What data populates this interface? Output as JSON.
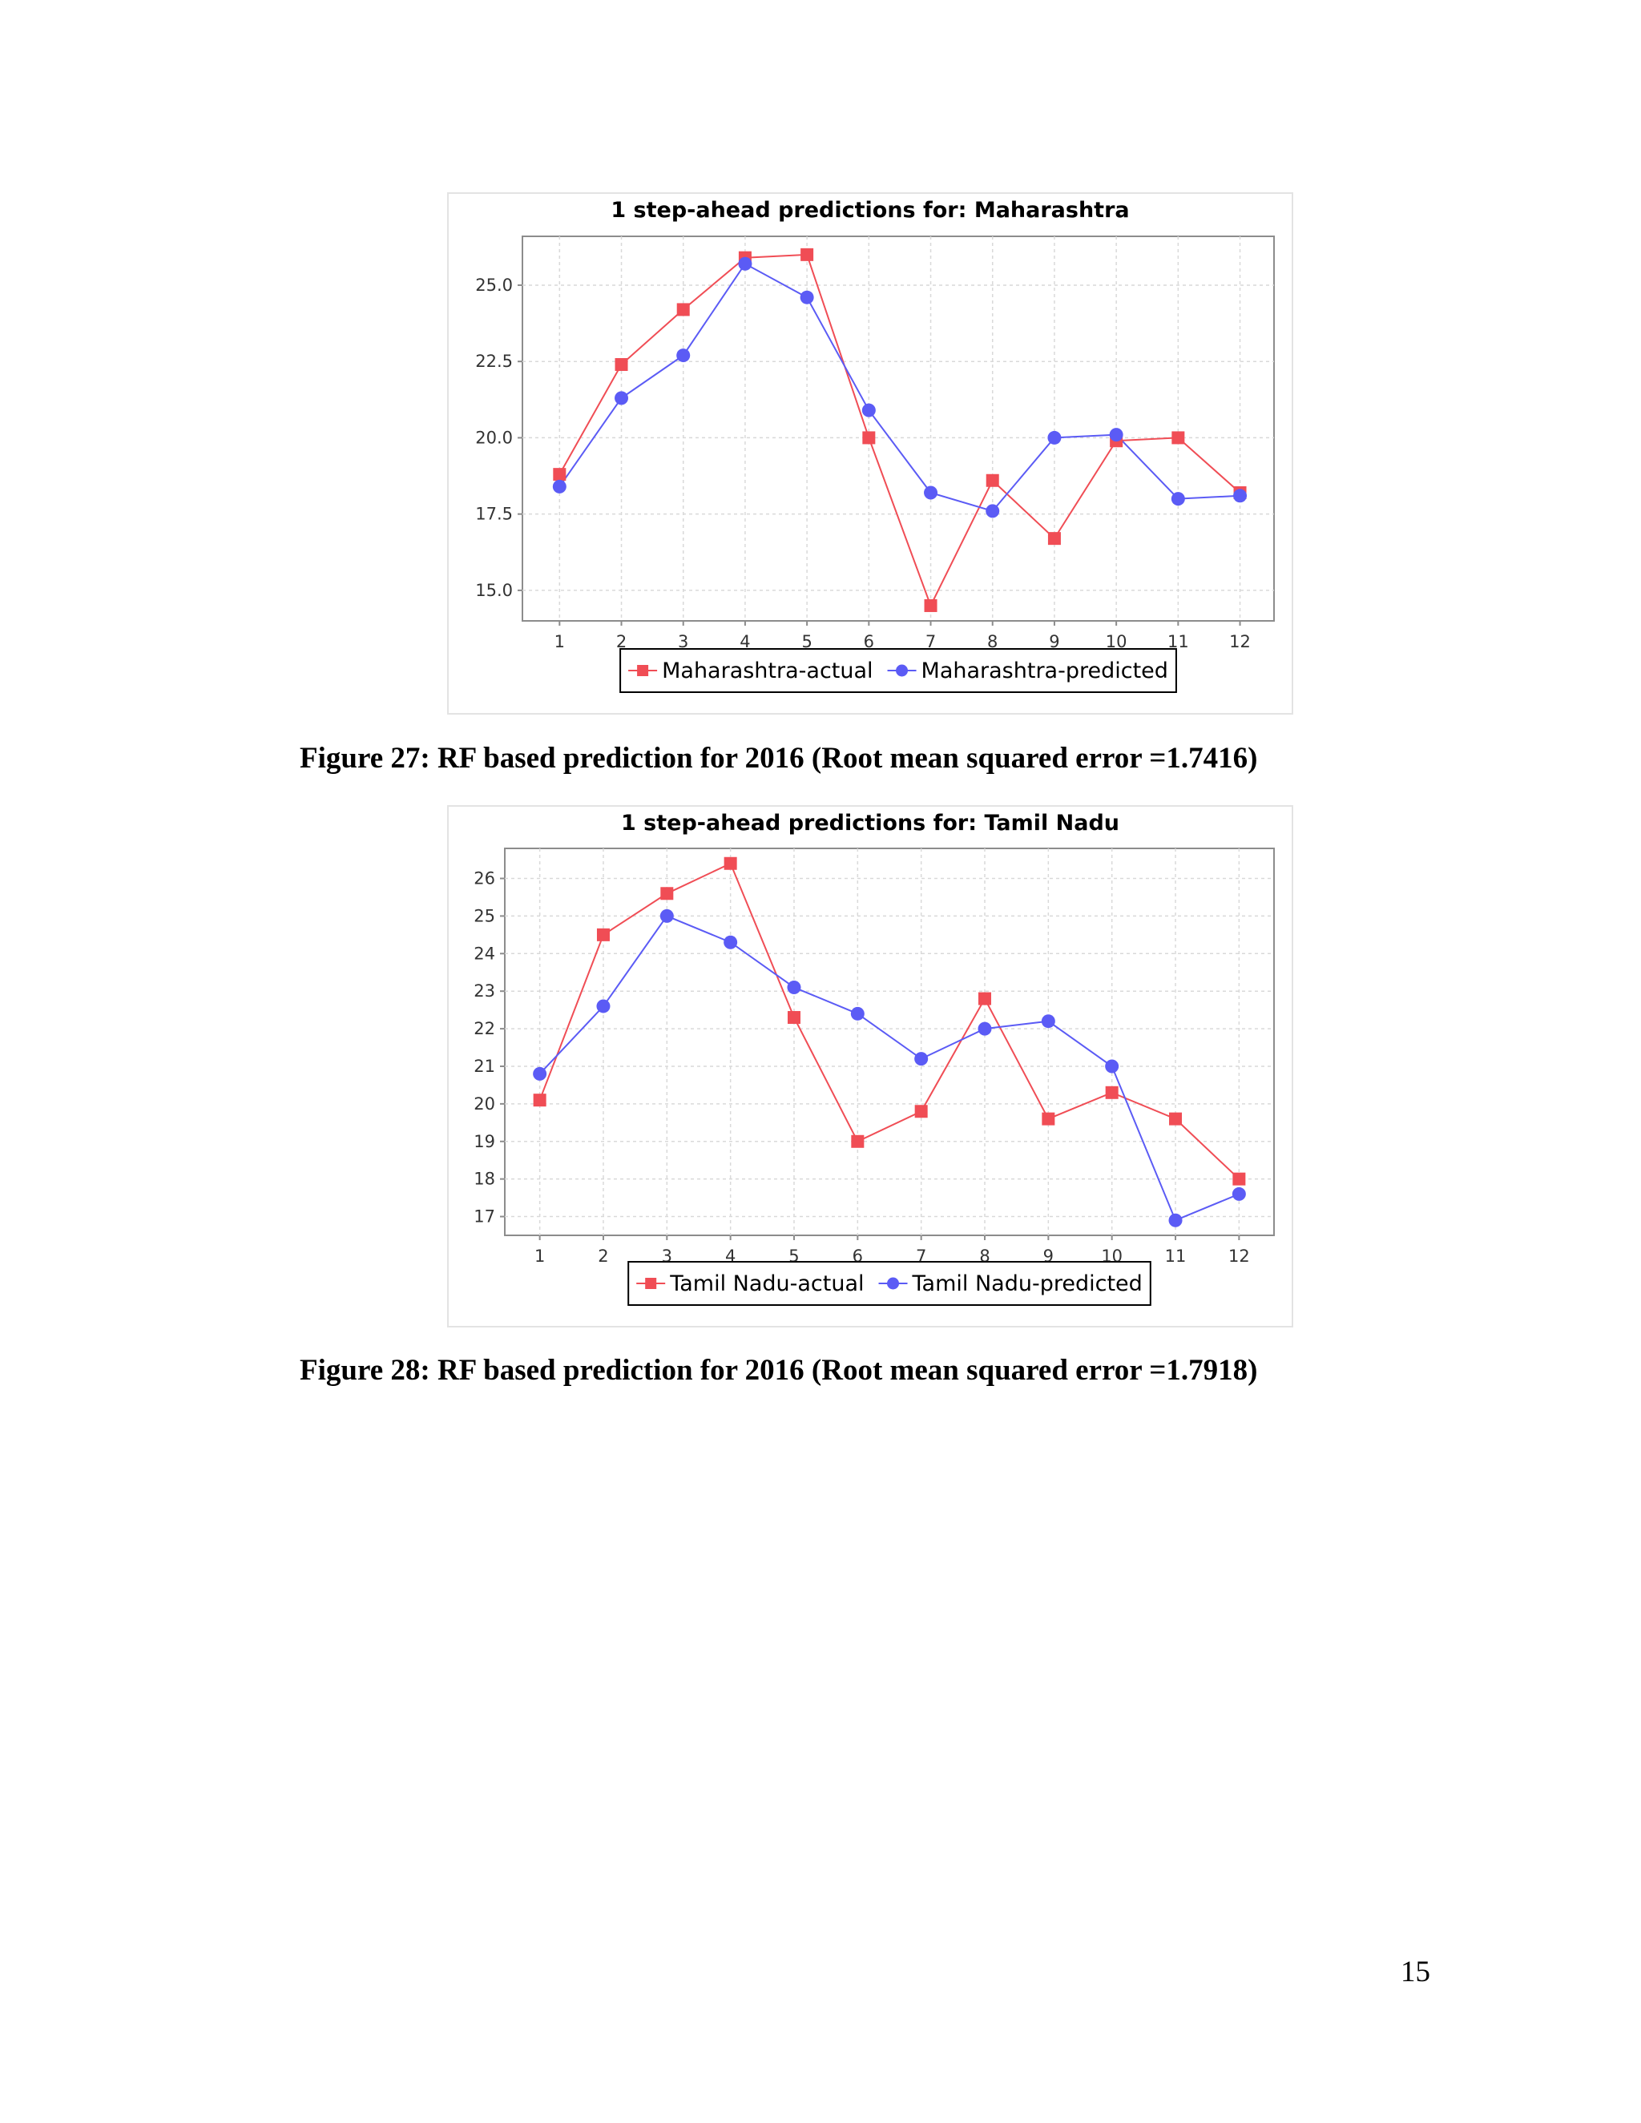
{
  "charts": [
    {
      "title": "1 step-ahead predictions for: Maharashtra",
      "caption": "Figure 27: RF based prediction for 2016 (Root mean squared error =1.7416)"
    },
    {
      "title": "1 step-ahead predictions for: Tamil Nadu",
      "caption": "Figure 28: RF based prediction for 2016 (Root mean squared error =1.7918)"
    }
  ],
  "page_number": "15",
  "colors": {
    "actual": "#f04d55",
    "predicted": "#5b5bf5",
    "grid": "#d9d9d9",
    "plot_border": "#8c8c8c"
  },
  "chart_data": [
    {
      "type": "line",
      "title": "1 step-ahead predictions for: Maharashtra",
      "xlabel": "",
      "ylabel": "",
      "x": [
        1,
        2,
        3,
        4,
        5,
        6,
        7,
        8,
        9,
        10,
        11,
        12
      ],
      "xlim": [
        0.4,
        12.55
      ],
      "ylim": [
        14.0,
        26.6
      ],
      "yticks": [
        15.0,
        17.5,
        20.0,
        22.5,
        25.0
      ],
      "ytick_labels": [
        "15.0",
        "17.5",
        "20.0",
        "22.5",
        "25.0"
      ],
      "grid": true,
      "legend_position": "bottom",
      "series": [
        {
          "name": "Maharashtra-actual",
          "marker": "square",
          "color": "#f04d55",
          "values": [
            18.8,
            22.4,
            24.2,
            25.9,
            26.0,
            20.0,
            14.5,
            18.6,
            16.7,
            19.9,
            20.0,
            18.2
          ]
        },
        {
          "name": "Maharashtra-predicted",
          "marker": "circle",
          "color": "#5b5bf5",
          "values": [
            18.4,
            21.3,
            22.7,
            25.7,
            24.6,
            20.9,
            18.2,
            17.6,
            20.0,
            20.1,
            18.0,
            18.1
          ]
        }
      ]
    },
    {
      "type": "line",
      "title": "1 step-ahead predictions for: Tamil Nadu",
      "xlabel": "",
      "ylabel": "",
      "x": [
        1,
        2,
        3,
        4,
        5,
        6,
        7,
        8,
        9,
        10,
        11,
        12
      ],
      "xlim": [
        0.45,
        12.55
      ],
      "ylim": [
        16.5,
        26.8
      ],
      "yticks": [
        17,
        18,
        19,
        20,
        21,
        22,
        23,
        24,
        25,
        26
      ],
      "ytick_labels": [
        "17",
        "18",
        "19",
        "20",
        "21",
        "22",
        "23",
        "24",
        "25",
        "26"
      ],
      "grid": true,
      "legend_position": "bottom",
      "series": [
        {
          "name": "Tamil Nadu-actual",
          "marker": "square",
          "color": "#f04d55",
          "values": [
            20.1,
            24.5,
            25.6,
            26.4,
            22.3,
            19.0,
            19.8,
            22.8,
            19.6,
            20.3,
            19.6,
            18.0
          ]
        },
        {
          "name": "Tamil Nadu-predicted",
          "marker": "circle",
          "color": "#5b5bf5",
          "values": [
            20.8,
            22.6,
            25.0,
            24.3,
            23.1,
            22.4,
            21.2,
            22.0,
            22.2,
            21.0,
            16.9,
            17.6
          ]
        }
      ]
    }
  ]
}
